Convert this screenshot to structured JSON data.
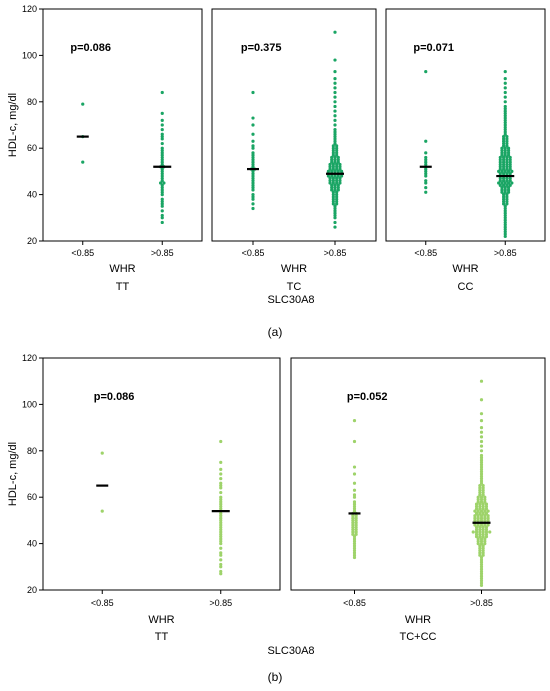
{
  "chart_data": [
    {
      "type": "scatter",
      "panel_label": "(a)",
      "ylabel": "HDL-c, mg/dl",
      "ylim": [
        20,
        120
      ],
      "yticks": [
        20,
        40,
        60,
        80,
        100,
        120
      ],
      "group_title": "SLC30A8",
      "grid": false,
      "color": "#1aa564",
      "panels": [
        {
          "genotype": "TT",
          "xlabel": "WHR",
          "categories": [
            "<0.85",
            ">0.85"
          ],
          "p_value": "p=0.086",
          "means": [
            65,
            52
          ],
          "values": [
            [
              79,
              65,
              54
            ],
            [
              84,
              75,
              72,
              70,
              68,
              66,
              65,
              64,
              62,
              60,
              59,
              58,
              57,
              56,
              55,
              54,
              53,
              52,
              52,
              51,
              50,
              49,
              48,
              47,
              46,
              45,
              45,
              44,
              43,
              42,
              41,
              40,
              38,
              37,
              36,
              35,
              33,
              31,
              30,
              28
            ]
          ]
        },
        {
          "genotype": "TC",
          "xlabel": "WHR",
          "categories": [
            "<0.85",
            ">0.85"
          ],
          "p_value": "p=0.375",
          "means": [
            51,
            49
          ],
          "values": [
            [
              84,
              73,
              70,
              66,
              63,
              61,
              60,
              58,
              57,
              56,
              55,
              54,
              53,
              52,
              51,
              51,
              50,
              49,
              48,
              47,
              46,
              45,
              44,
              43,
              42,
              40,
              39,
              38,
              36,
              34
            ],
            [
              110,
              98,
              93,
              90,
              88,
              86,
              84,
              82,
              80,
              78,
              76,
              74,
              72,
              70,
              68,
              67,
              66,
              65,
              64,
              63,
              62,
              61,
              61,
              60,
              60,
              59,
              59,
              58,
              58,
              57,
              57,
              56,
              56,
              56,
              55,
              55,
              55,
              54,
              54,
              54,
              53,
              53,
              53,
              53,
              52,
              52,
              52,
              52,
              51,
              51,
              51,
              51,
              50,
              50,
              50,
              50,
              50,
              49,
              49,
              49,
              49,
              49,
              48,
              48,
              48,
              48,
              48,
              47,
              47,
              47,
              47,
              46,
              46,
              46,
              46,
              45,
              45,
              45,
              45,
              44,
              44,
              44,
              43,
              43,
              43,
              42,
              42,
              42,
              41,
              41,
              40,
              40,
              39,
              39,
              38,
              38,
              37,
              37,
              36,
              36,
              35,
              34,
              33,
              32,
              31,
              30,
              28,
              26
            ]
          ]
        },
        {
          "genotype": "CC",
          "xlabel": "WHR",
          "categories": [
            "<0.85",
            ">0.85"
          ],
          "p_value": "p=0.071",
          "means": [
            52,
            48
          ],
          "values": [
            [
              93,
              63,
              58,
              56,
              55,
              54,
              53,
              52,
              51,
              50,
              49,
              48,
              46,
              45,
              43,
              41
            ],
            [
              93,
              90,
              88,
              86,
              84,
              82,
              80,
              78,
              77,
              76,
              75,
              74,
              73,
              72,
              71,
              70,
              69,
              68,
              67,
              66,
              65,
              65,
              64,
              64,
              63,
              63,
              62,
              62,
              61,
              61,
              60,
              60,
              60,
              59,
              59,
              59,
              58,
              58,
              58,
              57,
              57,
              57,
              56,
              56,
              56,
              56,
              55,
              55,
              55,
              55,
              54,
              54,
              54,
              54,
              53,
              53,
              53,
              53,
              52,
              52,
              52,
              52,
              51,
              51,
              51,
              51,
              50,
              50,
              50,
              50,
              50,
              49,
              49,
              49,
              49,
              48,
              48,
              48,
              48,
              47,
              47,
              47,
              47,
              46,
              46,
              46,
              46,
              45,
              45,
              45,
              45,
              45,
              44,
              44,
              44,
              44,
              43,
              43,
              43,
              42,
              42,
              42,
              41,
              41,
              41,
              40,
              40,
              39,
              39,
              38,
              38,
              37,
              37,
              36,
              36,
              35,
              34,
              33,
              32,
              31,
              30,
              29,
              28,
              27,
              26,
              25,
              24,
              23,
              22
            ]
          ]
        }
      ]
    },
    {
      "type": "scatter",
      "panel_label": "(b)",
      "ylabel": "HDL-c, mg/dl",
      "ylim": [
        20,
        120
      ],
      "yticks": [
        20,
        40,
        60,
        80,
        100,
        120
      ],
      "group_title": "SLC30A8",
      "grid": false,
      "color": "#9ed36a",
      "panels": [
        {
          "genotype": "TT",
          "xlabel": "WHR",
          "categories": [
            "<0.85",
            ">0.85"
          ],
          "p_value": "p=0.086",
          "means": [
            65,
            54
          ],
          "values": [
            [
              79,
              54
            ],
            [
              84,
              75,
              72,
              70,
              68,
              66,
              65,
              64,
              62,
              60,
              59,
              58,
              57,
              56,
              55,
              54,
              53,
              52,
              51,
              50,
              49,
              48,
              47,
              46,
              45,
              44,
              43,
              42,
              41,
              40,
              38,
              36,
              35,
              33,
              31,
              30,
              28,
              27
            ]
          ]
        },
        {
          "genotype": "TC+CC",
          "xlabel": "WHR",
          "categories": [
            "<0.85",
            ">0.85"
          ],
          "p_value": "p=0.052",
          "means": [
            53,
            49
          ],
          "values": [
            [
              93,
              84,
              73,
              70,
              66,
              63,
              61,
              60,
              58,
              57,
              56,
              55,
              54,
              53,
              53,
              52,
              52,
              51,
              51,
              50,
              50,
              49,
              49,
              48,
              48,
              47,
              47,
              46,
              46,
              45,
              45,
              44,
              44,
              43,
              42,
              41,
              40,
              39,
              38,
              37,
              36,
              35,
              34
            ],
            [
              110,
              102,
              96,
              93,
              90,
              88,
              86,
              84,
              82,
              80,
              78,
              77,
              76,
              75,
              74,
              73,
              72,
              71,
              70,
              69,
              68,
              67,
              66,
              65,
              65,
              64,
              64,
              63,
              63,
              62,
              62,
              61,
              61,
              60,
              60,
              60,
              59,
              59,
              59,
              58,
              58,
              58,
              57,
              57,
              57,
              57,
              56,
              56,
              56,
              56,
              55,
              55,
              55,
              55,
              54,
              54,
              54,
              54,
              54,
              53,
              53,
              53,
              53,
              52,
              52,
              52,
              52,
              52,
              51,
              51,
              51,
              51,
              51,
              50,
              50,
              50,
              50,
              50,
              49,
              49,
              49,
              49,
              49,
              48,
              48,
              48,
              48,
              48,
              47,
              47,
              47,
              47,
              46,
              46,
              46,
              46,
              45,
              45,
              45,
              45,
              45,
              45,
              44,
              44,
              44,
              44,
              43,
              43,
              43,
              43,
              42,
              42,
              42,
              41,
              41,
              41,
              40,
              40,
              40,
              39,
              39,
              38,
              38,
              37,
              37,
              36,
              36,
              35,
              35,
              34,
              33,
              32,
              31,
              30,
              29,
              28,
              27,
              26,
              25,
              24,
              23,
              22
            ]
          ]
        }
      ]
    }
  ]
}
